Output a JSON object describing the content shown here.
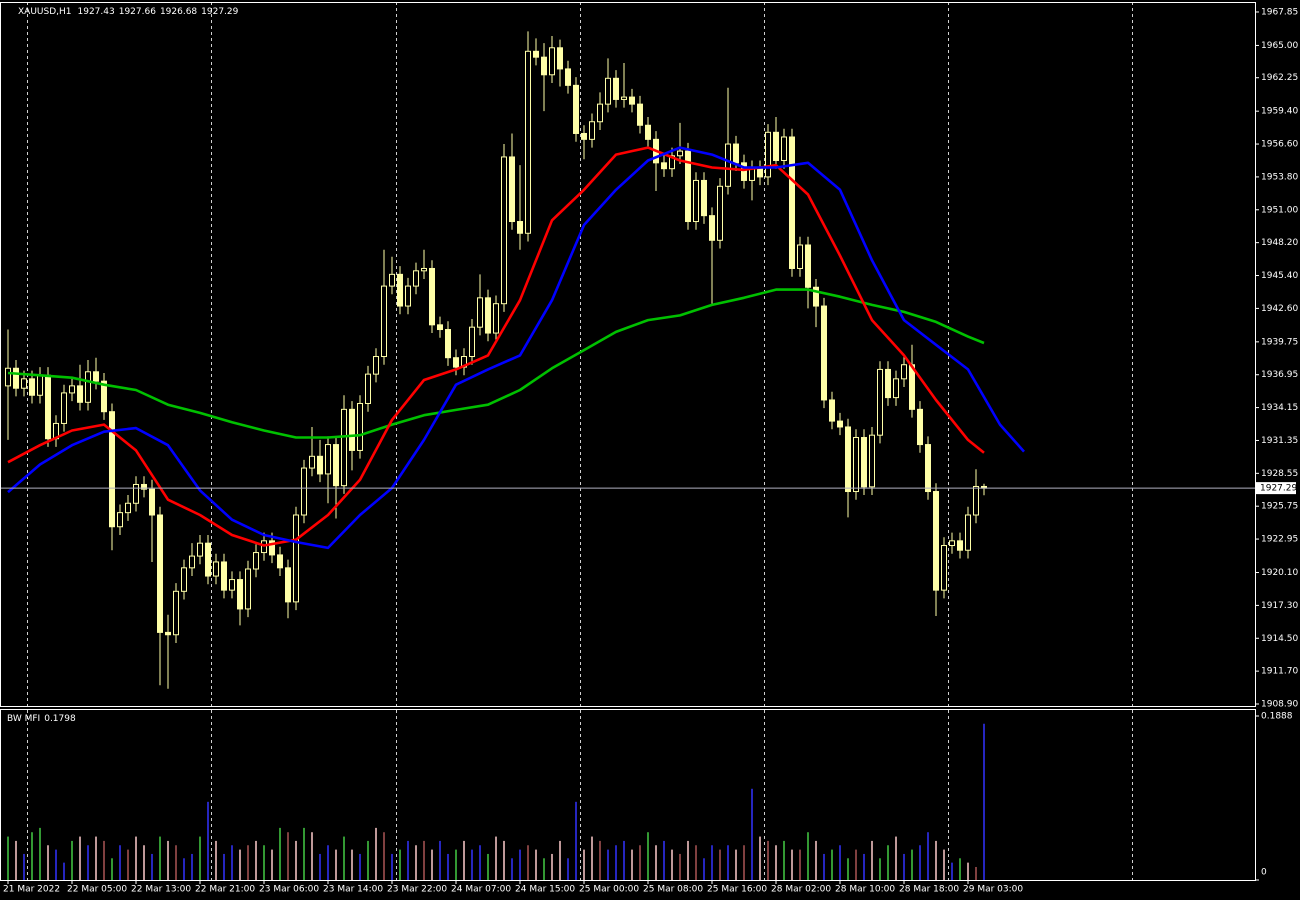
{
  "chart_data": [
    {
      "type": "candlestick",
      "symbol": "XAUUSD,H1",
      "open": [
        1936.0,
        1937.5,
        1935.8,
        1936.6,
        1935.2,
        1936.9,
        1931.5,
        1932.8,
        1935.4,
        1936.0,
        1934.6,
        1937.2,
        1936.4,
        1933.8,
        1924.0,
        1925.2,
        1926.0,
        1927.6,
        1927.2,
        1925.0,
        1915.0,
        1914.8,
        1918.5,
        1920.5,
        1921.5,
        1922.6,
        1919.8,
        1921.0,
        1918.6,
        1919.5,
        1917.0,
        1920.4,
        1921.8,
        1922.8,
        1921.6,
        1920.5,
        1917.6,
        1925.0,
        1929.0,
        1930.0,
        1928.5,
        1931.0,
        1927.5,
        1934.0,
        1930.5,
        1934.5,
        1937.0,
        1938.5,
        1944.5,
        1945.5,
        1942.8,
        1944.5,
        1945.8,
        1946.0,
        1941.2,
        1940.8,
        1938.4,
        1937.6,
        1938.5,
        1941.0,
        1943.5,
        1940.5,
        1943.0,
        1955.5,
        1950.0,
        1949.0,
        1964.5,
        1964.0,
        1962.5,
        1964.8,
        1963.0,
        1961.6,
        1957.5,
        1957.0,
        1958.5,
        1960.0,
        1962.2,
        1960.4,
        1960.6,
        1960.0,
        1958.2,
        1957.0,
        1955.0,
        1954.5,
        1955.6,
        1956.0,
        1950.0,
        1953.5,
        1950.5,
        1948.4,
        1953.0,
        1956.6,
        1955.0,
        1953.5,
        1954.5,
        1953.8,
        1957.6,
        1955.2,
        1957.2,
        1946.0,
        1948.0,
        1944.4,
        1942.8,
        1934.8,
        1933.0,
        1932.5,
        1927.0,
        1931.6,
        1927.4,
        1931.8,
        1937.4,
        1935.0,
        1936.6,
        1937.8,
        1934.0,
        1931.0,
        1927.0,
        1918.6,
        1922.4,
        1922.8,
        1922.0,
        1925.0,
        1927.43
      ],
      "high": [
        1940.8,
        1938.2,
        1937.3,
        1937.3,
        1937.6,
        1937.6,
        1933.5,
        1936.1,
        1936.7,
        1937.8,
        1938.2,
        1938.4,
        1937.1,
        1934.5,
        1925.9,
        1926.7,
        1928.3,
        1928.3,
        1928.0,
        1925.7,
        1916.5,
        1919.2,
        1921.2,
        1922.6,
        1923.3,
        1923.3,
        1921.7,
        1921.7,
        1920.2,
        1920.2,
        1921.1,
        1922.5,
        1923.5,
        1923.5,
        1922.3,
        1921.2,
        1925.7,
        1929.7,
        1932.5,
        1931.4,
        1931.7,
        1931.7,
        1935.2,
        1934.7,
        1935.2,
        1937.7,
        1939.2,
        1947.6,
        1947.0,
        1946.2,
        1945.2,
        1946.5,
        1947.6,
        1946.7,
        1941.9,
        1941.5,
        1939.1,
        1939.2,
        1941.7,
        1945.5,
        1944.2,
        1943.7,
        1956.6,
        1957.5,
        1954.8,
        1966.2,
        1965.6,
        1965.2,
        1965.8,
        1965.5,
        1963.7,
        1962.3,
        1958.2,
        1959.2,
        1961.0,
        1963.9,
        1962.9,
        1963.5,
        1961.3,
        1960.7,
        1958.9,
        1957.7,
        1955.7,
        1956.3,
        1958.4,
        1956.7,
        1954.2,
        1954.2,
        1951.2,
        1953.7,
        1961.4,
        1957.3,
        1955.7,
        1955.2,
        1955.2,
        1958.3,
        1958.9,
        1957.9,
        1957.9,
        1948.7,
        1948.7,
        1945.1,
        1943.5,
        1935.5,
        1933.7,
        1933.2,
        1932.3,
        1932.3,
        1932.5,
        1938.1,
        1938.1,
        1937.3,
        1938.5,
        1939.5,
        1934.7,
        1931.7,
        1927.7,
        1923.1,
        1923.5,
        1923.5,
        1925.7,
        1928.9,
        1927.66
      ],
      "low": [
        1931.4,
        1935.1,
        1935.1,
        1934.5,
        1934.5,
        1930.8,
        1930.8,
        1932.1,
        1934.7,
        1933.9,
        1933.9,
        1935.7,
        1933.1,
        1922.0,
        1923.3,
        1924.5,
        1925.3,
        1926.5,
        1921.0,
        1910.5,
        1910.2,
        1914.1,
        1917.8,
        1919.8,
        1920.8,
        1919.1,
        1919.1,
        1917.9,
        1917.9,
        1915.6,
        1916.3,
        1919.7,
        1921.1,
        1920.9,
        1919.8,
        1916.2,
        1916.9,
        1924.3,
        1928.3,
        1927.8,
        1926.0,
        1924.7,
        1926.8,
        1928.8,
        1929.8,
        1933.8,
        1936.3,
        1937.8,
        1943.8,
        1942.1,
        1942.1,
        1943.8,
        1945.1,
        1940.5,
        1940.1,
        1937.7,
        1936.9,
        1936.9,
        1937.8,
        1940.3,
        1939.8,
        1939.8,
        1942.3,
        1949.3,
        1947.6,
        1948.3,
        1963.3,
        1959.4,
        1961.8,
        1961.5,
        1960.9,
        1956.8,
        1955.3,
        1956.3,
        1957.8,
        1959.3,
        1959.7,
        1959.7,
        1959.3,
        1957.5,
        1956.3,
        1952.6,
        1953.8,
        1953.8,
        1954.9,
        1949.3,
        1949.3,
        1949.8,
        1943.0,
        1947.7,
        1952.3,
        1954.3,
        1952.8,
        1951.8,
        1953.1,
        1953.1,
        1954.5,
        1954.5,
        1945.3,
        1945.3,
        1942.6,
        1941.0,
        1934.1,
        1932.3,
        1931.8,
        1924.8,
        1926.3,
        1926.7,
        1926.7,
        1931.1,
        1934.3,
        1934.3,
        1935.9,
        1933.3,
        1930.3,
        1926.3,
        1916.4,
        1917.9,
        1921.7,
        1921.3,
        1921.3,
        1924.3,
        1926.68
      ],
      "close": [
        1937.5,
        1935.8,
        1936.6,
        1935.2,
        1936.9,
        1931.5,
        1932.8,
        1935.4,
        1936.0,
        1934.6,
        1937.2,
        1936.4,
        1933.8,
        1924.0,
        1925.2,
        1926.0,
        1927.6,
        1927.2,
        1925.0,
        1915.0,
        1914.8,
        1918.5,
        1920.5,
        1921.5,
        1922.6,
        1919.8,
        1921.0,
        1918.6,
        1919.5,
        1917.0,
        1920.4,
        1921.8,
        1922.8,
        1921.6,
        1920.5,
        1917.6,
        1925.0,
        1929.0,
        1930.0,
        1928.5,
        1931.0,
        1927.5,
        1934.0,
        1930.5,
        1934.5,
        1937.0,
        1938.5,
        1944.5,
        1945.5,
        1942.8,
        1944.5,
        1945.8,
        1946.0,
        1941.2,
        1940.8,
        1938.4,
        1937.6,
        1938.5,
        1941.0,
        1943.5,
        1940.5,
        1943.0,
        1955.5,
        1950.0,
        1949.0,
        1964.5,
        1964.0,
        1962.5,
        1964.8,
        1963.0,
        1961.6,
        1957.5,
        1957.0,
        1958.5,
        1960.0,
        1962.2,
        1960.4,
        1960.6,
        1960.0,
        1958.2,
        1957.0,
        1955.0,
        1954.5,
        1955.6,
        1956.0,
        1950.0,
        1953.5,
        1950.5,
        1948.4,
        1953.0,
        1956.6,
        1955.0,
        1953.5,
        1954.5,
        1953.8,
        1957.6,
        1955.2,
        1957.2,
        1946.0,
        1948.0,
        1944.4,
        1942.8,
        1934.8,
        1933.0,
        1932.5,
        1927.0,
        1931.6,
        1927.4,
        1931.8,
        1937.4,
        1935.0,
        1936.6,
        1937.8,
        1934.0,
        1931.0,
        1927.0,
        1918.6,
        1922.4,
        1922.8,
        1922.0,
        1925.0,
        1927.43,
        1927.29
      ],
      "bull_color": "#000000",
      "bear_color": "#ffffa8",
      "wick_color": "#ffffa8",
      "price_line_color": "#b0b0c0",
      "lines": [
        {
          "color": "#00c000",
          "x": [
            0,
            4,
            8,
            12,
            16,
            20,
            24,
            28,
            32,
            36,
            40,
            44,
            48,
            52,
            56,
            60,
            64,
            68,
            72,
            76,
            80,
            84,
            88,
            92,
            96,
            100,
            104,
            108,
            112,
            116,
            120,
            122
          ],
          "values": [
            1937.1,
            1936.9,
            1936.7,
            1936.1,
            1935.65,
            1934.4,
            1933.7,
            1932.9,
            1932.2,
            1931.6,
            1931.6,
            1931.8,
            1932.7,
            1933.5,
            1933.95,
            1934.4,
            1935.65,
            1937.5,
            1939.05,
            1940.6,
            1941.6,
            1942.0,
            1942.9,
            1943.5,
            1944.2,
            1944.2,
            1943.6,
            1942.9,
            1942.3,
            1941.45,
            1940.2,
            1939.65
          ]
        },
        {
          "color": "#ff0000",
          "x": [
            0,
            4,
            8,
            12,
            16,
            20,
            24,
            28,
            32,
            36,
            40,
            44,
            48,
            52,
            56,
            60,
            64,
            68,
            72,
            76,
            80,
            84,
            88,
            92,
            96,
            100,
            104,
            108,
            112,
            116,
            120,
            122
          ],
          "values": [
            1929.5,
            1930.95,
            1932.2,
            1932.7,
            1930.5,
            1926.3,
            1925.0,
            1923.3,
            1922.4,
            1922.9,
            1925.0,
            1928.0,
            1933.1,
            1936.5,
            1937.4,
            1938.6,
            1943.3,
            1950.1,
            1952.7,
            1955.7,
            1956.3,
            1955.2,
            1954.6,
            1954.4,
            1954.8,
            1952.3,
            1947.1,
            1941.6,
            1938.6,
            1934.8,
            1931.4,
            1930.3
          ]
        },
        {
          "color": "#0000ff",
          "x": [
            0,
            4,
            8,
            12,
            16,
            20,
            24,
            28,
            32,
            36,
            40,
            44,
            48,
            52,
            56,
            60,
            64,
            68,
            72,
            76,
            80,
            84,
            88,
            92,
            96,
            100,
            104,
            108,
            112,
            116,
            120,
            124,
            127
          ],
          "values": [
            1926.95,
            1929.3,
            1930.95,
            1932.1,
            1932.4,
            1930.95,
            1927.1,
            1924.6,
            1923.3,
            1922.7,
            1922.2,
            1925.0,
            1927.3,
            1931.4,
            1936.1,
            1937.4,
            1938.6,
            1943.3,
            1949.7,
            1952.7,
            1955.2,
            1956.3,
            1955.7,
            1954.6,
            1954.6,
            1955.0,
            1952.7,
            1946.7,
            1941.6,
            1939.5,
            1937.4,
            1932.7,
            1930.4
          ]
        }
      ],
      "xlim": [
        -1,
        156
      ],
      "xticks": [
        {
          "value": 0,
          "label": "21 Mar 2022"
        },
        {
          "value": 8,
          "label": "22 Mar 05:00"
        },
        {
          "value": 16,
          "label": "22 Mar 13:00"
        },
        {
          "value": 24,
          "label": "22 Mar 21:00"
        },
        {
          "value": 32,
          "label": "23 Mar 06:00"
        },
        {
          "value": 40,
          "label": "23 Mar 14:00"
        },
        {
          "value": 48,
          "label": "23 Mar 22:00"
        },
        {
          "value": 56,
          "label": "24 Mar 07:00"
        },
        {
          "value": 64,
          "label": "24 Mar 15:00"
        },
        {
          "value": 72,
          "label": "25 Mar 00:00"
        },
        {
          "value": 80,
          "label": "25 Mar 08:00"
        },
        {
          "value": 88,
          "label": "25 Mar 16:00"
        },
        {
          "value": 96,
          "label": "28 Mar 02:00"
        },
        {
          "value": 104,
          "label": "28 Mar 10:00"
        },
        {
          "value": 112,
          "label": "28 Mar 18:00"
        },
        {
          "value": 120,
          "label": "29 Mar 03:00"
        }
      ],
      "ylim": [
        1908.73,
        1968.7
      ],
      "yticks": [
        1967.85,
        {
          "value": 1965.0,
          "label": "1965.00"
        },
        1962.25,
        {
          "value": 1959.4,
          "label": "1959.40"
        },
        {
          "value": 1956.6,
          "label": "1956.60"
        },
        {
          "value": 1953.8,
          "label": "1953.80"
        },
        {
          "value": 1951.0,
          "label": "1951.00"
        },
        {
          "value": 1948.2,
          "label": "1948.20"
        },
        {
          "value": 1945.4,
          "label": "1945.40"
        },
        {
          "value": 1942.6,
          "label": "1942.60"
        },
        1939.75,
        1936.95,
        1934.15,
        1931.35,
        1928.55,
        1925.75,
        1922.95,
        {
          "value": 1920.1,
          "label": "1920.10"
        },
        {
          "value": 1917.3,
          "label": "1917.30"
        },
        {
          "value": 1914.5,
          "label": "1914.50"
        },
        {
          "value": 1911.7,
          "label": "1911.70"
        },
        {
          "value": 1908.9,
          "label": "1908.90"
        }
      ]
    },
    {
      "type": "bar",
      "title": "BW MFI",
      "values": [
        0.05,
        0.045,
        0.03,
        0.055,
        0.06,
        0.04,
        0.035,
        0.02,
        0.045,
        0.05,
        0.04,
        0.05,
        0.045,
        0.025,
        0.04,
        0.035,
        0.05,
        0.04,
        0.03,
        0.05,
        0.045,
        0.04,
        0.025,
        0.03,
        0.05,
        0.09,
        0.045,
        0.03,
        0.04,
        0.035,
        0.04,
        0.045,
        0.04,
        0.035,
        0.06,
        0.055,
        0.045,
        0.06,
        0.055,
        0.03,
        0.04,
        0.035,
        0.05,
        0.035,
        0.03,
        0.045,
        0.06,
        0.055,
        0.03,
        0.035,
        0.045,
        0.04,
        0.045,
        0.035,
        0.045,
        0.03,
        0.035,
        0.045,
        0.035,
        0.04,
        0.03,
        0.05,
        0.045,
        0.025,
        0.035,
        0.04,
        0.035,
        0.025,
        0.03,
        0.045,
        0.025,
        0.09,
        0.035,
        0.05,
        0.045,
        0.035,
        0.04,
        0.045,
        0.035,
        0.04,
        0.055,
        0.04,
        0.045,
        0.035,
        0.03,
        0.045,
        0.04,
        0.025,
        0.04,
        0.035,
        0.04,
        0.035,
        0.04,
        0.105,
        0.05,
        0.045,
        0.04,
        0.045,
        0.035,
        0.035,
        0.055,
        0.045,
        0.03,
        0.035,
        0.04,
        0.025,
        0.035,
        0.03,
        0.045,
        0.025,
        0.04,
        0.05,
        0.03,
        0.035,
        0.04,
        0.055,
        0.045,
        0.035,
        0.02,
        0.025,
        0.02,
        0.015,
        0.1798
      ],
      "colors": [
        "#4c4",
        "#fcc",
        "#33f",
        "#4c4",
        "#4c4",
        "#fcc",
        "#33f",
        "#33f",
        "#4c4",
        "#fcc",
        "#33f",
        "#fcc",
        "#a55",
        "#4c4",
        "#33f",
        "#a55",
        "#fcc",
        "#fcc",
        "#33f",
        "#4c4",
        "#fcc",
        "#a55",
        "#33f",
        "#33f",
        "#4c4",
        "#33f",
        "#fcc",
        "#33f",
        "#33f",
        "#fcc",
        "#a55",
        "#fcc",
        "#4c4",
        "#fcc",
        "#4c4",
        "#a55",
        "#fcc",
        "#4c4",
        "#fcc",
        "#33f",
        "#33f",
        "#fcc",
        "#4c4",
        "#fcc",
        "#33f",
        "#4c4",
        "#fcc",
        "#a55",
        "#33f",
        "#4c4",
        "#33f",
        "#fcc",
        "#a55",
        "#fcc",
        "#33f",
        "#33f",
        "#4c4",
        "#fcc",
        "#33f",
        "#33f",
        "#4c4",
        "#fcc",
        "#fcc",
        "#33f",
        "#33f",
        "#a55",
        "#fcc",
        "#4c4",
        "#fcc",
        "#fcc",
        "#33f",
        "#33f",
        "#fcc",
        "#fcc",
        "#a55",
        "#33f",
        "#33f",
        "#33f",
        "#fcc",
        "#a55",
        "#4c4",
        "#fcc",
        "#33f",
        "#fcc",
        "#a55",
        "#fcc",
        "#a55",
        "#33f",
        "#33f",
        "#a55",
        "#33f",
        "#fcc",
        "#a55",
        "#33f",
        "#fcc",
        "#a55",
        "#fcc",
        "#4c4",
        "#fcc",
        "#a55",
        "#4c4",
        "#fcc",
        "#33f",
        "#4c4",
        "#33f",
        "#4c4",
        "#a55",
        "#33f",
        "#fcc",
        "#4c4",
        "#4c4",
        "#fcc",
        "#33f",
        "#4c4",
        "#33f",
        "#33f",
        "#fcc",
        "#fcc",
        "#33f",
        "#4c4",
        "#fcc",
        "#a55",
        "#33f"
      ],
      "ylim": [
        0,
        0.1957
      ],
      "yticks": [
        0.1888,
        0
      ]
    }
  ]
}
